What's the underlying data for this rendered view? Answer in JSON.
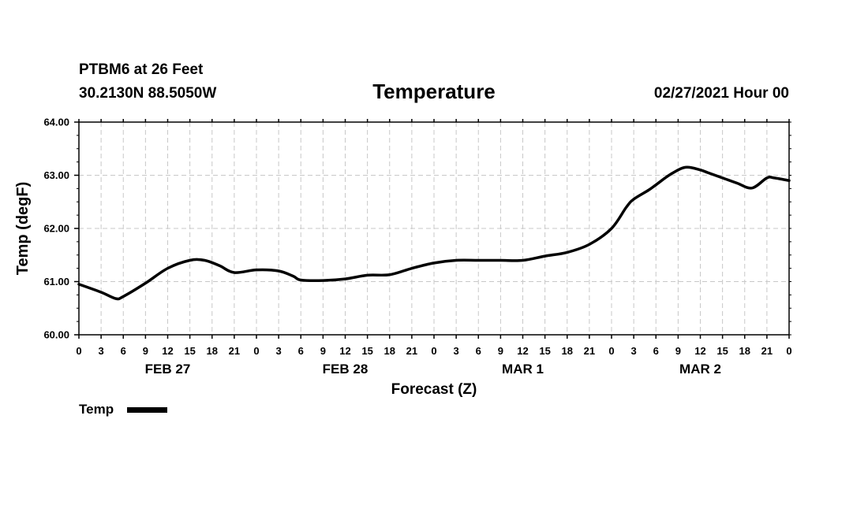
{
  "header": {
    "station": "PTBM6 at 26 Feet",
    "coords": "30.2130N 88.5050W",
    "title": "Temperature",
    "datetime": "02/27/2021 Hour 00"
  },
  "chart_data": {
    "type": "line",
    "title": "Temperature",
    "xlabel": "Forecast (Z)",
    "ylabel": "Temp (degF)",
    "ylim": [
      60.0,
      64.0
    ],
    "yticks": [
      "60.00",
      "61.00",
      "62.00",
      "63.00",
      "64.00"
    ],
    "xlim_hours": [
      0,
      96
    ],
    "xtick_labels": [
      "0",
      "3",
      "6",
      "9",
      "12",
      "15",
      "18",
      "21",
      "0",
      "3",
      "6",
      "9",
      "12",
      "15",
      "18",
      "21",
      "0",
      "3",
      "6",
      "9",
      "12",
      "15",
      "18",
      "21",
      "0",
      "3",
      "6",
      "9",
      "12",
      "15",
      "18",
      "21",
      "0"
    ],
    "day_labels": [
      {
        "label": "FEB 27",
        "hour": 12
      },
      {
        "label": "FEB 28",
        "hour": 36
      },
      {
        "label": "MAR 1",
        "hour": 60
      },
      {
        "label": "MAR 2",
        "hour": 84
      }
    ],
    "grid": true,
    "legend": {
      "placement": "bottom-left",
      "entries": [
        "Temp"
      ]
    },
    "series": [
      {
        "name": "Temp",
        "color": "#000000",
        "x_hours": [
          0,
          3,
          5,
          6,
          9,
          12,
          15,
          17,
          19,
          21,
          24,
          27,
          29,
          30,
          33,
          36,
          39,
          42,
          45,
          48,
          51,
          54,
          57,
          60,
          63,
          66,
          69,
          72,
          74,
          75,
          77,
          78,
          80,
          82,
          84,
          85,
          87,
          89,
          91,
          93,
          94,
          96
        ],
        "values": [
          60.95,
          60.8,
          60.68,
          60.72,
          60.97,
          61.25,
          61.4,
          61.4,
          61.3,
          61.17,
          61.22,
          61.2,
          61.1,
          61.03,
          61.02,
          61.05,
          61.12,
          61.13,
          61.25,
          61.35,
          61.4,
          61.4,
          61.4,
          61.4,
          61.48,
          61.55,
          61.7,
          62.0,
          62.4,
          62.55,
          62.72,
          62.82,
          63.02,
          63.15,
          63.1,
          63.05,
          62.95,
          62.85,
          62.76,
          62.95,
          62.95,
          62.9
        ]
      }
    ]
  }
}
